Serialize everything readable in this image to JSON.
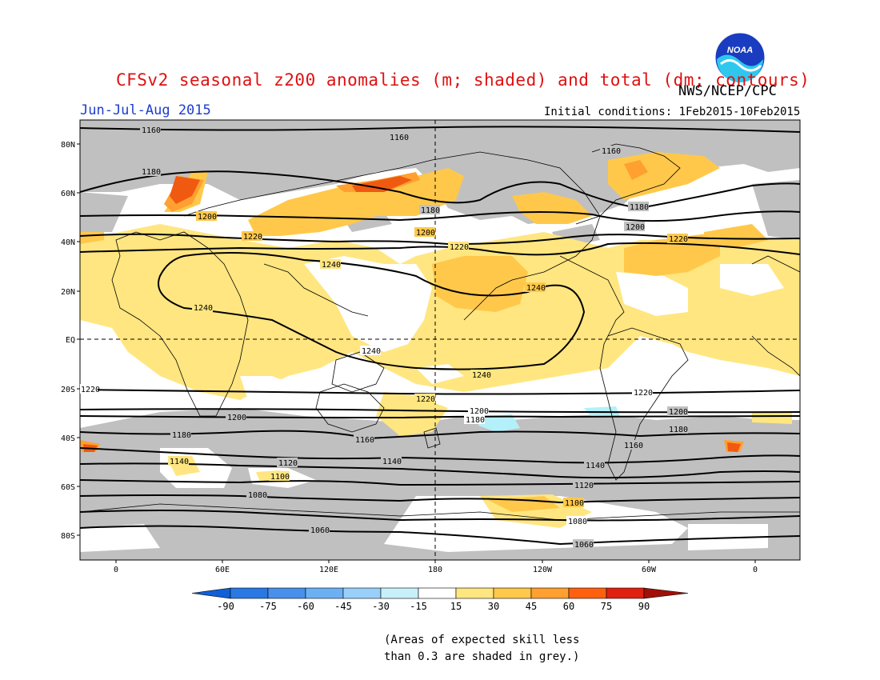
{
  "header": {
    "title": "CFSv2 seasonal z200 anomalies (m; shaded) and total (dm; contours)",
    "agency": "NWS/NCEP/CPC",
    "period": "Jun-Jul-Aug 2015",
    "initial_conditions": "Initial conditions: 1Feb2015-10Feb2015",
    "logo_text": "NOAA"
  },
  "map": {
    "lat_labels": [
      "80N",
      "60N",
      "40N",
      "20N",
      "EQ",
      "20S",
      "40S",
      "60S",
      "80S"
    ],
    "lon_labels": [
      "0",
      "60E",
      "120E",
      "180",
      "120W",
      "60W",
      "0"
    ],
    "contours": [
      {
        "value": "1160",
        "label": "1160"
      },
      {
        "value": "1180",
        "label": "1180"
      },
      {
        "value": "1200",
        "label": "1200"
      },
      {
        "value": "1220",
        "label": "1220"
      },
      {
        "value": "1240",
        "label": "1240"
      },
      {
        "value": "1140",
        "label": "1140"
      },
      {
        "value": "1120",
        "label": "1120"
      },
      {
        "value": "1100",
        "label": "1100"
      },
      {
        "value": "1080",
        "label": "1080"
      },
      {
        "value": "1060",
        "label": "1060"
      }
    ],
    "colors": {
      "grey_skill": "#c0c0c0",
      "light_yellow": "#ffe680",
      "yellow": "#ffc84a",
      "orange": "#ffa030",
      "dark_orange": "#f05a10",
      "cyan": "#b4f0fa",
      "ocean_white": "#ffffff"
    }
  },
  "colorbar": {
    "labels": [
      "-90",
      "-75",
      "-60",
      "-45",
      "-30",
      "-15",
      "15",
      "30",
      "45",
      "60",
      "75",
      "90"
    ],
    "colors": [
      "#1060d8",
      "#2a78e4",
      "#4890ec",
      "#6cb0f4",
      "#98d0fa",
      "#c8f0fa",
      "#ffffff",
      "#ffe680",
      "#ffc84a",
      "#ffa030",
      "#ff6010",
      "#e02010",
      "#a01008"
    ]
  },
  "note": {
    "line1": "(Areas of expected skill less",
    "line2": "than 0.3 are shaded in grey.)"
  }
}
